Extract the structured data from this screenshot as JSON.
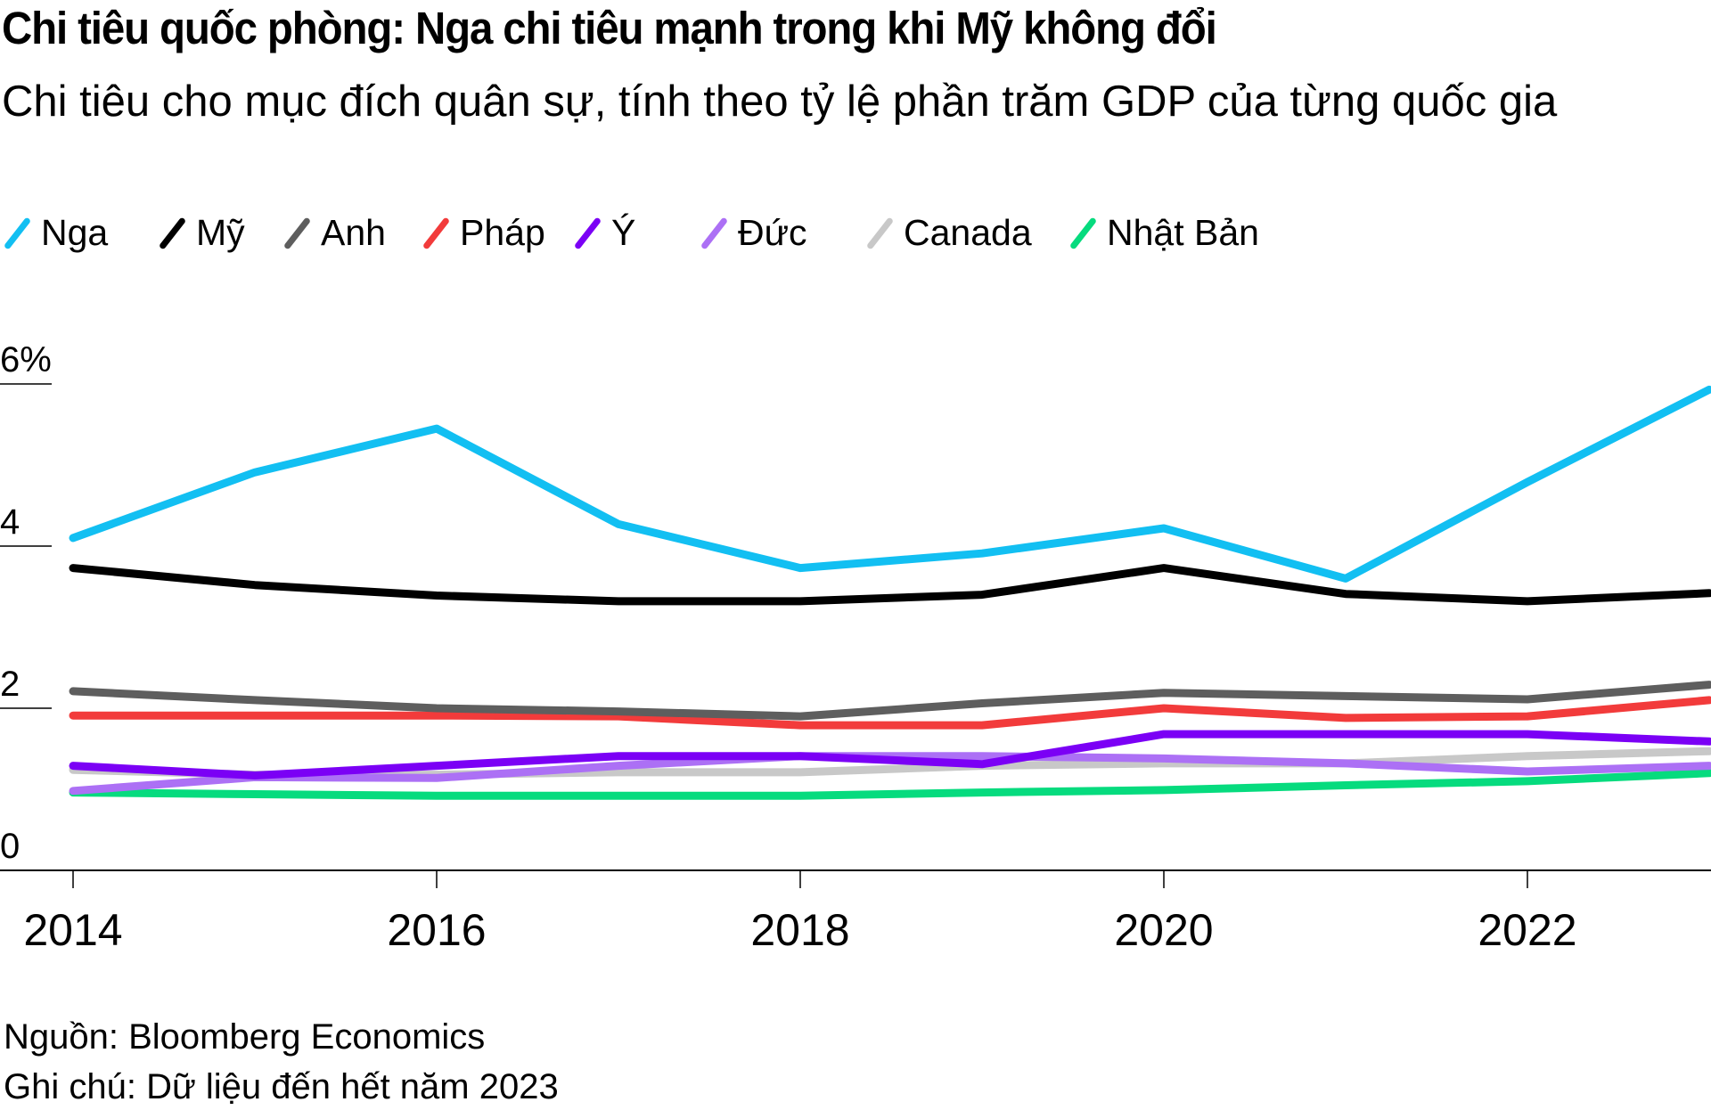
{
  "chart_data": {
    "type": "line",
    "title": "Chi tiêu quốc phòng: Nga chi tiêu mạnh trong khi Mỹ không đổi",
    "subtitle": "Chi tiêu cho mục đích quân sự, tính theo tỷ lệ phần trăm GDP của từng quốc gia",
    "xlabel": "",
    "ylabel": "",
    "x": [
      2014,
      2015,
      2016,
      2017,
      2018,
      2019,
      2020,
      2021,
      2022,
      2023
    ],
    "xlim": [
      2014,
      2023
    ],
    "ylim": [
      0,
      6
    ],
    "x_ticks": [
      "2014",
      "2016",
      "2018",
      "2020",
      "2022"
    ],
    "x_tick_values": [
      2014,
      2016,
      2018,
      2020,
      2022
    ],
    "y_ticks": [
      "0",
      "2",
      "4",
      "6%"
    ],
    "y_tick_values": [
      0,
      2,
      4,
      6
    ],
    "grid": false,
    "legend_position": "top-left",
    "series": [
      {
        "name": "Nga",
        "color": "#12bff2",
        "values": [
          4.1,
          4.91,
          5.45,
          4.27,
          3.73,
          3.91,
          4.22,
          3.6,
          4.79,
          5.93
        ]
      },
      {
        "name": "Mỹ",
        "color": "#000000",
        "values": [
          3.73,
          3.52,
          3.39,
          3.32,
          3.32,
          3.4,
          3.73,
          3.41,
          3.32,
          3.42
        ]
      },
      {
        "name": "Anh",
        "color": "#5e5e5e",
        "values": [
          2.21,
          2.1,
          2.0,
          1.96,
          1.9,
          2.06,
          2.19,
          2.15,
          2.11,
          2.29
        ]
      },
      {
        "name": "Pháp",
        "color": "#f23b3b",
        "values": [
          1.91,
          1.91,
          1.91,
          1.9,
          1.79,
          1.79,
          2.0,
          1.88,
          1.9,
          2.1
        ]
      },
      {
        "name": "Ý",
        "color": "#7b00f5",
        "values": [
          1.29,
          1.17,
          1.29,
          1.41,
          1.41,
          1.31,
          1.68,
          1.68,
          1.68,
          1.59
        ]
      },
      {
        "name": "Đức",
        "color": "#ac70f5",
        "values": [
          0.98,
          1.15,
          1.14,
          1.29,
          1.41,
          1.41,
          1.38,
          1.32,
          1.22,
          1.29
        ]
      },
      {
        "name": "Canada",
        "color": "#c8c8c8",
        "values": [
          1.24,
          1.18,
          1.18,
          1.21,
          1.21,
          1.29,
          1.32,
          1.32,
          1.41,
          1.47
        ]
      },
      {
        "name": "Nhật Bản",
        "color": "#06db7e",
        "values": [
          0.96,
          0.94,
          0.92,
          0.92,
          0.92,
          0.96,
          0.99,
          1.05,
          1.1,
          1.2
        ]
      }
    ],
    "source": "Nguồn: Bloomberg Economics",
    "note": "Ghi chú: Dữ liệu đến hết năm 2023"
  }
}
